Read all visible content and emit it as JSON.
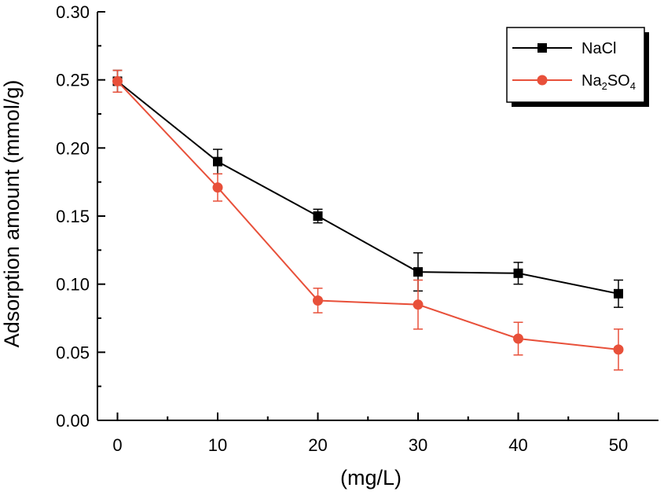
{
  "chart_data": {
    "type": "line",
    "title": "",
    "xlabel": "(mg/L)",
    "ylabel": "Adsorption amount (mmol/g)",
    "x": [
      0,
      10,
      20,
      30,
      40,
      50
    ],
    "xlim": [
      -2,
      54
    ],
    "ylim": [
      0,
      0.3
    ],
    "xticks": [
      0,
      10,
      20,
      30,
      40,
      50
    ],
    "xtick_labels": [
      "0",
      "10",
      "20",
      "30",
      "40",
      "50"
    ],
    "yticks": [
      0,
      0.05,
      0.1,
      0.15,
      0.2,
      0.25,
      0.3
    ],
    "ytick_labels": [
      "0.00",
      "0.05",
      "0.10",
      "0.15",
      "0.20",
      "0.25",
      "0.30"
    ],
    "grid": false,
    "legend_position": "top-right",
    "series": [
      {
        "name": "NaCl",
        "name_base": "NaCl",
        "color": "#000000",
        "marker": "square",
        "values": [
          0.249,
          0.19,
          0.15,
          0.109,
          0.108,
          0.093
        ],
        "errors": [
          0.008,
          0.009,
          0.005,
          0.014,
          0.008,
          0.01
        ]
      },
      {
        "name": "Na2SO4",
        "name_parts": [
          "Na",
          "2",
          "SO",
          "4"
        ],
        "color": "#e8503a",
        "marker": "circle",
        "values": [
          0.249,
          0.171,
          0.088,
          0.085,
          0.06,
          0.052
        ],
        "errors": [
          0.008,
          0.01,
          0.009,
          0.018,
          0.012,
          0.015
        ]
      }
    ]
  }
}
